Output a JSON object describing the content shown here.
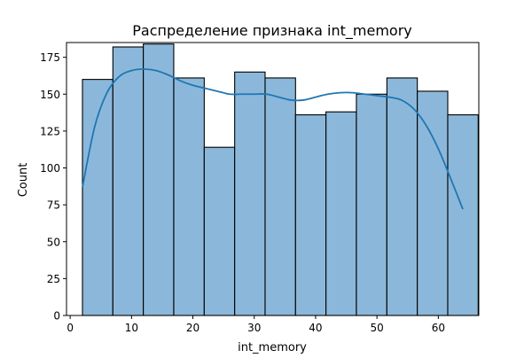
{
  "chart_data": {
    "type": "bar",
    "title": "Распределение признака int_memory",
    "xlabel": "int_memory",
    "ylabel": "Count",
    "xlim": [
      -0.6,
      66.6
    ],
    "ylim": [
      0,
      185
    ],
    "xticks": [
      0,
      10,
      20,
      30,
      40,
      50,
      60
    ],
    "yticks": [
      0,
      25,
      50,
      75,
      100,
      125,
      150,
      175
    ],
    "bins": [
      {
        "x0": 2.0,
        "x1": 6.96,
        "count": 160
      },
      {
        "x0": 6.96,
        "x1": 11.92,
        "count": 182
      },
      {
        "x0": 11.92,
        "x1": 16.88,
        "count": 184
      },
      {
        "x0": 16.88,
        "x1": 21.85,
        "count": 161
      },
      {
        "x0": 21.85,
        "x1": 26.81,
        "count": 114
      },
      {
        "x0": 26.81,
        "x1": 31.77,
        "count": 165
      },
      {
        "x0": 31.77,
        "x1": 36.73,
        "count": 161
      },
      {
        "x0": 36.73,
        "x1": 41.69,
        "count": 136
      },
      {
        "x0": 41.69,
        "x1": 46.65,
        "count": 138
      },
      {
        "x0": 46.65,
        "x1": 51.62,
        "count": 150
      },
      {
        "x0": 51.62,
        "x1": 56.58,
        "count": 161
      },
      {
        "x0": 56.58,
        "x1": 61.54,
        "count": 152
      },
      {
        "x0": 61.54,
        "x1": 66.5,
        "count": 136
      }
    ],
    "kde": {
      "x": [
        2,
        4,
        6,
        8,
        10,
        12,
        14,
        16,
        18,
        20,
        22,
        24,
        26,
        28,
        30,
        32,
        34,
        36,
        38,
        40,
        42,
        44,
        46,
        48,
        50,
        52,
        54,
        56,
        58,
        60,
        62,
        64
      ],
      "y": [
        87,
        128,
        151,
        162,
        166,
        167,
        166,
        163,
        159,
        156,
        154,
        152,
        150,
        150,
        150,
        150,
        148,
        146,
        146,
        148,
        150,
        151,
        151,
        150,
        149,
        148,
        146,
        140,
        129,
        113,
        93,
        72
      ]
    },
    "grid": false,
    "legend": "none",
    "colors": {
      "bar_fill": "#8bb8da",
      "bar_edge": "#000000",
      "kde_line": "#1f77b4",
      "axes": "#000000"
    }
  }
}
